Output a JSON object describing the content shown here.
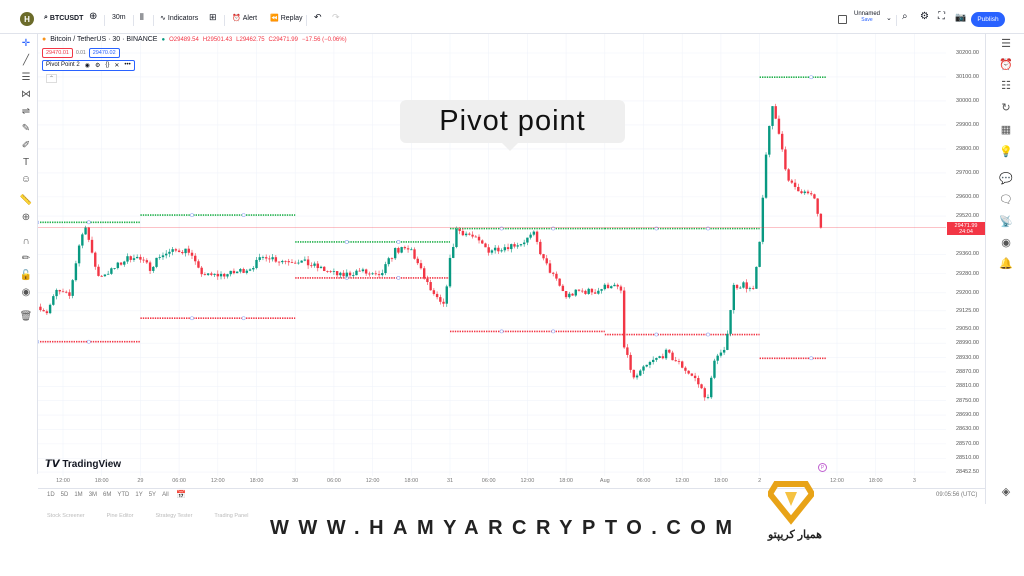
{
  "topbar": {
    "logo_letter": "H",
    "symbol": "BTCUSDT",
    "interval": "30m",
    "indicators": "Indicators",
    "alert": "Alert",
    "replay": "Replay",
    "layout_name": "Unnamed",
    "layout_save": "Save",
    "publish": "Publish"
  },
  "legend": {
    "title": "Bitcoin / TetherUS · 30 · BINANCE",
    "o": "O29489.54",
    "h": "H29501.43",
    "l": "L29462.75",
    "c": "C29471.99",
    "change": "−17.56 (−0.06%)",
    "bid": "29470.01",
    "spread": "0.01",
    "ask": "29470.02",
    "indicator": "Pivot Point 2",
    "status_color": "#089981"
  },
  "callout": "Pivot point",
  "brand": "TradingView",
  "price_axis": [
    "30200.00",
    "30100.00",
    "30000.00",
    "29900.00",
    "29800.00",
    "29700.00",
    "29600.00",
    "29520.00",
    "29360.00",
    "29280.00",
    "29200.00",
    "29125.00",
    "29050.00",
    "28990.00",
    "28930.00",
    "28870.00",
    "28810.00",
    "28750.00",
    "28690.00",
    "28630.00",
    "28570.00",
    "28510.00",
    "28452.50"
  ],
  "current": {
    "price": "29471.99",
    "countdown": "24:04"
  },
  "time_axis": [
    [
      "12:00",
      "Jul 28 12:00"
    ],
    [
      "18:00",
      "Jul 28 18:00"
    ],
    [
      "29",
      "Jul 29 00:00"
    ],
    [
      "06:00",
      "Jul 29 06:00"
    ],
    [
      "12:00",
      "Jul 29 12:00"
    ],
    [
      "18:00",
      "Jul 29 18:00"
    ],
    [
      "30",
      "Jul 30 00:00"
    ],
    [
      "06:00",
      "Jul 30 06:00"
    ],
    [
      "12:00",
      "Jul 30 12:00"
    ],
    [
      "18:00",
      "Jul 30 18:00"
    ],
    [
      "31",
      "Jul 31 00:00"
    ],
    [
      "06:00",
      "Jul 31 06:00"
    ],
    [
      "12:00",
      "Jul 31 12:00"
    ],
    [
      "18:00",
      "Jul 31 18:00"
    ],
    [
      "Aug",
      "Aug 1 00:00"
    ],
    [
      "06:00",
      "Aug 1 06:00"
    ],
    [
      "12:00",
      "Aug 1 12:00"
    ],
    [
      "18:00",
      "Aug 1 18:00"
    ],
    [
      "2",
      "Aug 2 00:00"
    ],
    [
      "12:00",
      "Aug 2 12:00"
    ],
    [
      "18:00",
      "Aug 2 18:00"
    ],
    [
      "3",
      "Aug 3 00:00"
    ]
  ],
  "ranges": [
    "1D",
    "5D",
    "1M",
    "3M",
    "6M",
    "YTD",
    "1Y",
    "5Y",
    "All"
  ],
  "clock": "09:05:56 (UTC)",
  "bottom_tabs": [
    "Stock Screener",
    "Pine Editor",
    "Strategy Tester",
    "Trading Panel"
  ],
  "watermark": "WWW.HAMYARCRYPTO.COM",
  "watermark_fa": "همیار کریپتو",
  "colors": {
    "up": "#089981",
    "down": "#f23645",
    "accent": "#2962ff",
    "resistance": "#22b14c",
    "support": "#f23645"
  },
  "chart_data": {
    "type": "candlestick",
    "interval": "30m",
    "symbol": "BTCUSDT",
    "close_path": [
      [
        "Jul 28 08:30",
        29142
      ],
      [
        "Jul 28 09:30",
        29120
      ],
      [
        "Jul 28 11:00",
        29206
      ],
      [
        "Jul 28 13:00",
        29185
      ],
      [
        "Jul 28 14:30",
        29399
      ],
      [
        "Jul 28 15:30",
        29485
      ],
      [
        "Jul 28 16:30",
        29356
      ],
      [
        "Jul 28 17:30",
        29270
      ],
      [
        "Jul 28 19:30",
        29292
      ],
      [
        "Jul 28 21:30",
        29335
      ],
      [
        "Jul 28 23:00",
        29356
      ],
      [
        "Jul 29 01:30",
        29305
      ],
      [
        "Jul 29 03:00",
        29356
      ],
      [
        "Jul 29 06:00",
        29378
      ],
      [
        "Jul 29 07:30",
        29378
      ],
      [
        "Jul 29 09:00",
        29292
      ],
      [
        "Jul 29 10:30",
        29270
      ],
      [
        "Jul 29 14:00",
        29279
      ],
      [
        "Jul 29 17:00",
        29305
      ],
      [
        "Jul 29 19:30",
        29356
      ],
      [
        "Jul 29 21:30",
        29335
      ],
      [
        "Jul 30 00:30",
        29335
      ],
      [
        "Jul 30 03:30",
        29305
      ],
      [
        "Jul 30 07:00",
        29270
      ],
      [
        "Jul 30 10:00",
        29292
      ],
      [
        "Jul 30 13:00",
        29262
      ],
      [
        "Jul 30 15:30",
        29378
      ],
      [
        "Jul 30 18:00",
        29378
      ],
      [
        "Jul 30 20:00",
        29262
      ],
      [
        "Jul 30 21:30",
        29185
      ],
      [
        "Jul 30 23:00",
        29142
      ],
      [
        "Jul 31 00:00",
        29335
      ],
      [
        "Jul 31 01:00",
        29464
      ],
      [
        "Jul 31 03:00",
        29442
      ],
      [
        "Jul 31 06:00",
        29378
      ],
      [
        "Jul 31 09:30",
        29399
      ],
      [
        "Jul 31 11:00",
        29408
      ],
      [
        "Jul 31 13:00",
        29442
      ],
      [
        "Jul 31 14:30",
        29335
      ],
      [
        "Jul 31 16:30",
        29249
      ],
      [
        "Jul 31 18:00",
        29185
      ],
      [
        "Jul 31 20:00",
        29206
      ],
      [
        "Jul 31 22:30",
        29206
      ],
      [
        "Aug 1 01:00",
        29236
      ],
      [
        "Aug 1 02:30",
        29206
      ],
      [
        "Aug 1 03:00",
        28970
      ],
      [
        "Aug 1 04:30",
        28841
      ],
      [
        "Aug 1 07:00",
        28906
      ],
      [
        "Aug 1 09:30",
        28949
      ],
      [
        "Aug 1 11:30",
        28906
      ],
      [
        "Aug 1 14:00",
        28841
      ],
      [
        "Aug 1 16:00",
        28755
      ],
      [
        "Aug 1 17:00",
        28927
      ],
      [
        "Aug 1 18:30",
        28949
      ],
      [
        "Aug 1 20:00",
        29227
      ],
      [
        "Aug 1 21:30",
        29236
      ],
      [
        "Aug 1 23:00",
        29206
      ],
      [
        "Aug 2 00:00",
        29399
      ],
      [
        "Aug 2 01:00",
        29785
      ],
      [
        "Aug 2 02:00",
        29979
      ],
      [
        "Aug 2 03:00",
        29871
      ],
      [
        "Aug 2 04:30",
        29657
      ],
      [
        "Aug 2 06:00",
        29635
      ],
      [
        "Aug 2 08:30",
        29592
      ],
      [
        "Aug 2 09:30",
        29471.99
      ]
    ],
    "pivots": [
      {
        "day": "Jul 28",
        "r": 29494,
        "s": 28996
      },
      {
        "day": "Jul 29",
        "r": 29524,
        "s": 29094
      },
      {
        "day": "Jul 30",
        "r": 29412,
        "s": 29262
      },
      {
        "day": "Jul 31",
        "r": 29468,
        "s": 29039
      },
      {
        "day": "Aug 1",
        "r": 29468,
        "s": 29026
      },
      {
        "day": "Aug 2",
        "r": 30099,
        "s": 28927
      }
    ],
    "ylim": [
      28452.5,
      30200
    ]
  }
}
